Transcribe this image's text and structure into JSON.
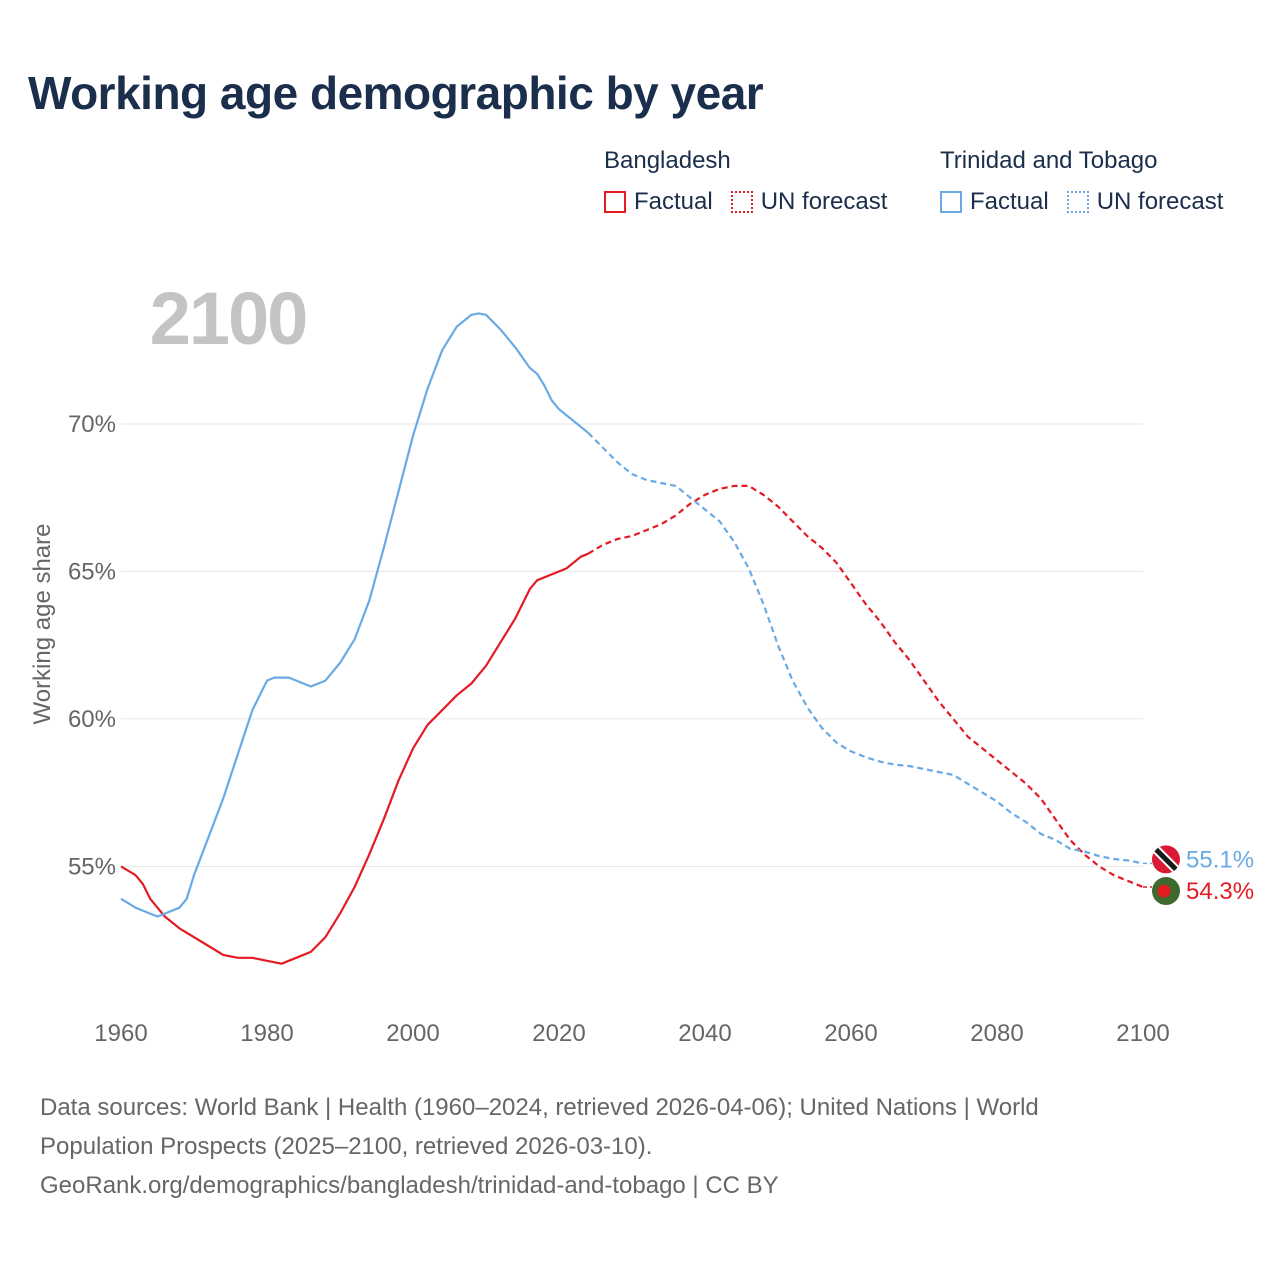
{
  "header": {
    "title": "Working age demographic by year"
  },
  "legend": {
    "groups": [
      {
        "name": "Bangladesh",
        "color": "#e31b23",
        "factual_label": "Factual",
        "forecast_label": "UN forecast"
      },
      {
        "name": "Trinidad and Tobago",
        "color": "#6aaae4",
        "factual_label": "Factual",
        "forecast_label": "UN forecast"
      }
    ]
  },
  "chart_data": {
    "type": "line",
    "title": "Working age demographic by year",
    "year_label": "2100",
    "xlabel": "",
    "ylabel": "Working age share",
    "xlim": [
      1960,
      2100
    ],
    "ylim": [
      50.3,
      76
    ],
    "x_ticks": [
      1960,
      1980,
      2000,
      2020,
      2040,
      2060,
      2080,
      2100
    ],
    "x_tick_labels": [
      "1960",
      "1980",
      "2000",
      "2020",
      "2040",
      "2060",
      "2080",
      "2100"
    ],
    "y_ticks": [
      55,
      60,
      65,
      70
    ],
    "y_tick_labels": [
      "55%",
      "60%",
      "65%",
      "70%"
    ],
    "factual_end_year": 2024,
    "series": [
      {
        "name": "Bangladesh",
        "color": "#e31b23",
        "flag": "bangladesh-flag",
        "end_label": "54.3%",
        "points": [
          [
            1960,
            55.0
          ],
          [
            1962,
            54.7
          ],
          [
            1963,
            54.4
          ],
          [
            1964,
            53.9
          ],
          [
            1965,
            53.6
          ],
          [
            1966,
            53.3
          ],
          [
            1968,
            52.9
          ],
          [
            1970,
            52.6
          ],
          [
            1972,
            52.3
          ],
          [
            1974,
            52.0
          ],
          [
            1976,
            51.9
          ],
          [
            1978,
            51.9
          ],
          [
            1980,
            51.8
          ],
          [
            1982,
            51.7
          ],
          [
            1984,
            51.9
          ],
          [
            1986,
            52.1
          ],
          [
            1988,
            52.6
          ],
          [
            1990,
            53.4
          ],
          [
            1992,
            54.3
          ],
          [
            1994,
            55.4
          ],
          [
            1996,
            56.6
          ],
          [
            1998,
            57.9
          ],
          [
            2000,
            59.0
          ],
          [
            2002,
            59.8
          ],
          [
            2004,
            60.3
          ],
          [
            2006,
            60.8
          ],
          [
            2008,
            61.2
          ],
          [
            2010,
            61.8
          ],
          [
            2012,
            62.6
          ],
          [
            2014,
            63.4
          ],
          [
            2016,
            64.4
          ],
          [
            2017,
            64.7
          ],
          [
            2019,
            64.9
          ],
          [
            2021,
            65.1
          ],
          [
            2023,
            65.5
          ],
          [
            2024,
            65.6
          ],
          [
            2026,
            65.9
          ],
          [
            2028,
            66.1
          ],
          [
            2030,
            66.2
          ],
          [
            2032,
            66.4
          ],
          [
            2034,
            66.6
          ],
          [
            2036,
            66.9
          ],
          [
            2038,
            67.3
          ],
          [
            2040,
            67.6
          ],
          [
            2042,
            67.8
          ],
          [
            2044,
            67.9
          ],
          [
            2046,
            67.9
          ],
          [
            2048,
            67.6
          ],
          [
            2050,
            67.2
          ],
          [
            2052,
            66.7
          ],
          [
            2054,
            66.2
          ],
          [
            2056,
            65.8
          ],
          [
            2058,
            65.3
          ],
          [
            2060,
            64.6
          ],
          [
            2062,
            63.9
          ],
          [
            2064,
            63.3
          ],
          [
            2066,
            62.6
          ],
          [
            2068,
            62.0
          ],
          [
            2070,
            61.3
          ],
          [
            2072,
            60.6
          ],
          [
            2074,
            60.0
          ],
          [
            2076,
            59.4
          ],
          [
            2078,
            59.0
          ],
          [
            2080,
            58.6
          ],
          [
            2082,
            58.2
          ],
          [
            2084,
            57.8
          ],
          [
            2086,
            57.3
          ],
          [
            2088,
            56.6
          ],
          [
            2090,
            55.9
          ],
          [
            2092,
            55.4
          ],
          [
            2094,
            55.0
          ],
          [
            2096,
            54.7
          ],
          [
            2098,
            54.5
          ],
          [
            2100,
            54.3
          ]
        ]
      },
      {
        "name": "Trinidad and Tobago",
        "color": "#6aaae4",
        "flag": "trinidad-and-tobago-flag",
        "end_label": "55.1%",
        "points": [
          [
            1960,
            53.9
          ],
          [
            1962,
            53.6
          ],
          [
            1964,
            53.4
          ],
          [
            1965,
            53.3
          ],
          [
            1966,
            53.4
          ],
          [
            1968,
            53.6
          ],
          [
            1969,
            53.9
          ],
          [
            1970,
            54.7
          ],
          [
            1972,
            56.0
          ],
          [
            1974,
            57.3
          ],
          [
            1976,
            58.8
          ],
          [
            1978,
            60.3
          ],
          [
            1980,
            61.3
          ],
          [
            1981,
            61.4
          ],
          [
            1983,
            61.4
          ],
          [
            1985,
            61.2
          ],
          [
            1986,
            61.1
          ],
          [
            1988,
            61.3
          ],
          [
            1990,
            61.9
          ],
          [
            1992,
            62.7
          ],
          [
            1994,
            64.0
          ],
          [
            1996,
            65.8
          ],
          [
            1998,
            67.7
          ],
          [
            2000,
            69.6
          ],
          [
            2002,
            71.2
          ],
          [
            2004,
            72.5
          ],
          [
            2006,
            73.3
          ],
          [
            2008,
            73.7
          ],
          [
            2009,
            73.75
          ],
          [
            2010,
            73.7
          ],
          [
            2012,
            73.2
          ],
          [
            2014,
            72.6
          ],
          [
            2016,
            71.9
          ],
          [
            2017,
            71.7
          ],
          [
            2018,
            71.3
          ],
          [
            2019,
            70.8
          ],
          [
            2020,
            70.5
          ],
          [
            2022,
            70.1
          ],
          [
            2024,
            69.7
          ],
          [
            2026,
            69.2
          ],
          [
            2028,
            68.7
          ],
          [
            2030,
            68.3
          ],
          [
            2032,
            68.1
          ],
          [
            2034,
            68.0
          ],
          [
            2036,
            67.9
          ],
          [
            2038,
            67.5
          ],
          [
            2040,
            67.1
          ],
          [
            2042,
            66.7
          ],
          [
            2044,
            66.0
          ],
          [
            2046,
            65.1
          ],
          [
            2048,
            63.9
          ],
          [
            2050,
            62.5
          ],
          [
            2052,
            61.3
          ],
          [
            2054,
            60.4
          ],
          [
            2056,
            59.7
          ],
          [
            2058,
            59.2
          ],
          [
            2060,
            58.9
          ],
          [
            2062,
            58.7
          ],
          [
            2064,
            58.55
          ],
          [
            2066,
            58.45
          ],
          [
            2068,
            58.4
          ],
          [
            2070,
            58.3
          ],
          [
            2072,
            58.2
          ],
          [
            2074,
            58.1
          ],
          [
            2076,
            57.8
          ],
          [
            2078,
            57.5
          ],
          [
            2080,
            57.2
          ],
          [
            2082,
            56.8
          ],
          [
            2084,
            56.5
          ],
          [
            2086,
            56.1
          ],
          [
            2088,
            55.9
          ],
          [
            2090,
            55.6
          ],
          [
            2092,
            55.5
          ],
          [
            2094,
            55.35
          ],
          [
            2096,
            55.25
          ],
          [
            2098,
            55.2
          ],
          [
            2100,
            55.1
          ]
        ]
      }
    ]
  },
  "footer": {
    "line1": "Data sources: World Bank | Health (1960–2024, retrieved 2026-04-06); United Nations | World",
    "line2": "Population Prospects (2025–2100, retrieved 2026-03-10).",
    "line3": "GeoRank.org/demographics/bangladesh/trinidad-and-tobago | CC BY"
  },
  "colors": {
    "bangladesh": "#e31b23",
    "trinidad": "#6aaae4",
    "title": "#1b2e4b",
    "axis_text": "#666666",
    "grid": "#e6e6e6",
    "year_watermark": "#c4c4c4"
  }
}
